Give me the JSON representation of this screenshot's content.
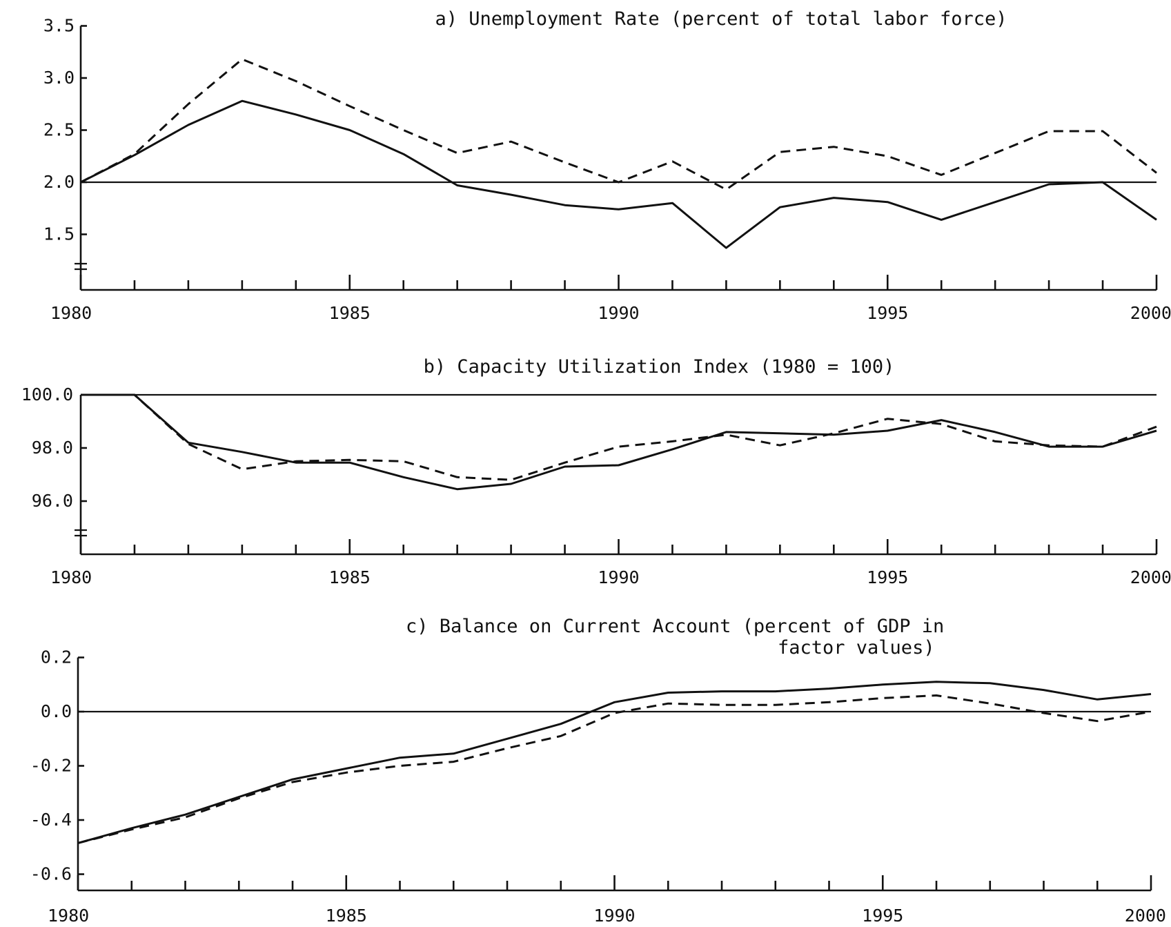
{
  "chart_data": [
    {
      "type": "line",
      "title": "a) Unemployment Rate (percent of total labor force)",
      "xlabel": "",
      "ylabel": "",
      "x": [
        1980,
        1981,
        1982,
        1983,
        1984,
        1985,
        1986,
        1987,
        1988,
        1989,
        1990,
        1991,
        1992,
        1993,
        1994,
        1995,
        1996,
        1997,
        1998,
        1999,
        2000
      ],
      "xlim": [
        1980,
        2000
      ],
      "x_tick_labels": [
        "1980",
        "1985",
        "1990",
        "1995",
        "2000"
      ],
      "ylim": [
        1.0,
        3.5
      ],
      "y_ticks": [
        1.5,
        2.0,
        2.5,
        3.0,
        3.5
      ],
      "y_tick_labels": [
        "1.5",
        "2.0",
        "2.5",
        "3.0",
        "3.5"
      ],
      "axis_break": true,
      "reference_line": 2.0,
      "series": [
        {
          "style": "solid",
          "values": [
            2.0,
            2.26,
            2.55,
            2.78,
            2.65,
            2.5,
            2.27,
            1.97,
            1.88,
            1.78,
            1.74,
            1.8,
            1.37,
            1.76,
            1.85,
            1.81,
            1.64,
            1.81,
            1.98,
            2.0,
            1.64
          ]
        },
        {
          "style": "dashed",
          "values": [
            2.0,
            2.27,
            2.75,
            3.18,
            2.97,
            2.73,
            2.5,
            2.28,
            2.39,
            2.19,
            2.0,
            2.2,
            1.93,
            2.29,
            2.34,
            2.25,
            2.07,
            2.28,
            2.49,
            2.49,
            2.09
          ]
        }
      ]
    },
    {
      "type": "line",
      "title": "b) Capacity Utilization Index (1980 = 100)",
      "xlabel": "",
      "ylabel": "",
      "x": [
        1980,
        1981,
        1982,
        1983,
        1984,
        1985,
        1986,
        1987,
        1988,
        1989,
        1990,
        1991,
        1992,
        1993,
        1994,
        1995,
        1996,
        1997,
        1998,
        1999,
        2000
      ],
      "xlim": [
        1980,
        2000
      ],
      "x_tick_labels": [
        "1980",
        "1985",
        "1990",
        "1995",
        "2000"
      ],
      "ylim": [
        94.0,
        100.0
      ],
      "y_ticks": [
        96.0,
        98.0,
        100.0
      ],
      "y_tick_labels": [
        "96.0",
        "98.0",
        "100.0"
      ],
      "axis_break": true,
      "reference_line": 100.0,
      "series": [
        {
          "style": "solid",
          "values": [
            100.0,
            100.0,
            98.2,
            97.85,
            97.45,
            97.45,
            96.9,
            96.45,
            96.65,
            97.3,
            97.35,
            97.95,
            98.6,
            98.55,
            98.5,
            98.65,
            99.05,
            98.6,
            98.05,
            98.05,
            98.65
          ]
        },
        {
          "style": "dashed",
          "values": [
            100.0,
            100.0,
            98.15,
            97.2,
            97.5,
            97.55,
            97.5,
            96.9,
            96.8,
            97.45,
            98.05,
            98.25,
            98.5,
            98.1,
            98.55,
            99.1,
            98.9,
            98.25,
            98.1,
            98.05,
            98.8
          ]
        }
      ]
    },
    {
      "type": "line",
      "title": "c) Balance on Current Account (percent of GDP in factor values)",
      "title_lines": [
        "c) Balance on Current Account (percent of GDP in",
        "factor values)"
      ],
      "xlabel": "",
      "ylabel": "",
      "x": [
        1980,
        1981,
        1982,
        1983,
        1984,
        1985,
        1986,
        1987,
        1988,
        1989,
        1990,
        1991,
        1992,
        1993,
        1994,
        1995,
        1996,
        1997,
        1998,
        1999,
        2000
      ],
      "xlim": [
        1980,
        2000
      ],
      "x_tick_labels": [
        "1980",
        "1985",
        "1990",
        "1995",
        "2000"
      ],
      "ylim": [
        -0.65,
        0.2
      ],
      "y_ticks": [
        -0.6,
        -0.4,
        -0.2,
        0.0,
        0.2
      ],
      "y_tick_labels": [
        "-0.6",
        "-0.4",
        "-0.2",
        "0.0",
        "0.2"
      ],
      "axis_break": false,
      "reference_line": 0.0,
      "series": [
        {
          "style": "solid",
          "values": [
            -0.485,
            -0.43,
            -0.38,
            -0.315,
            -0.25,
            -0.21,
            -0.17,
            -0.155,
            -0.1,
            -0.045,
            0.035,
            0.07,
            0.075,
            0.075,
            0.085,
            0.1,
            0.11,
            0.105,
            0.08,
            0.045,
            0.065
          ]
        },
        {
          "style": "dashed",
          "values": [
            -0.485,
            -0.435,
            -0.39,
            -0.32,
            -0.26,
            -0.225,
            -0.2,
            -0.185,
            -0.135,
            -0.09,
            -0.005,
            0.03,
            0.025,
            0.025,
            0.035,
            0.05,
            0.06,
            0.03,
            -0.005,
            -0.035,
            0.0
          ]
        }
      ]
    }
  ]
}
